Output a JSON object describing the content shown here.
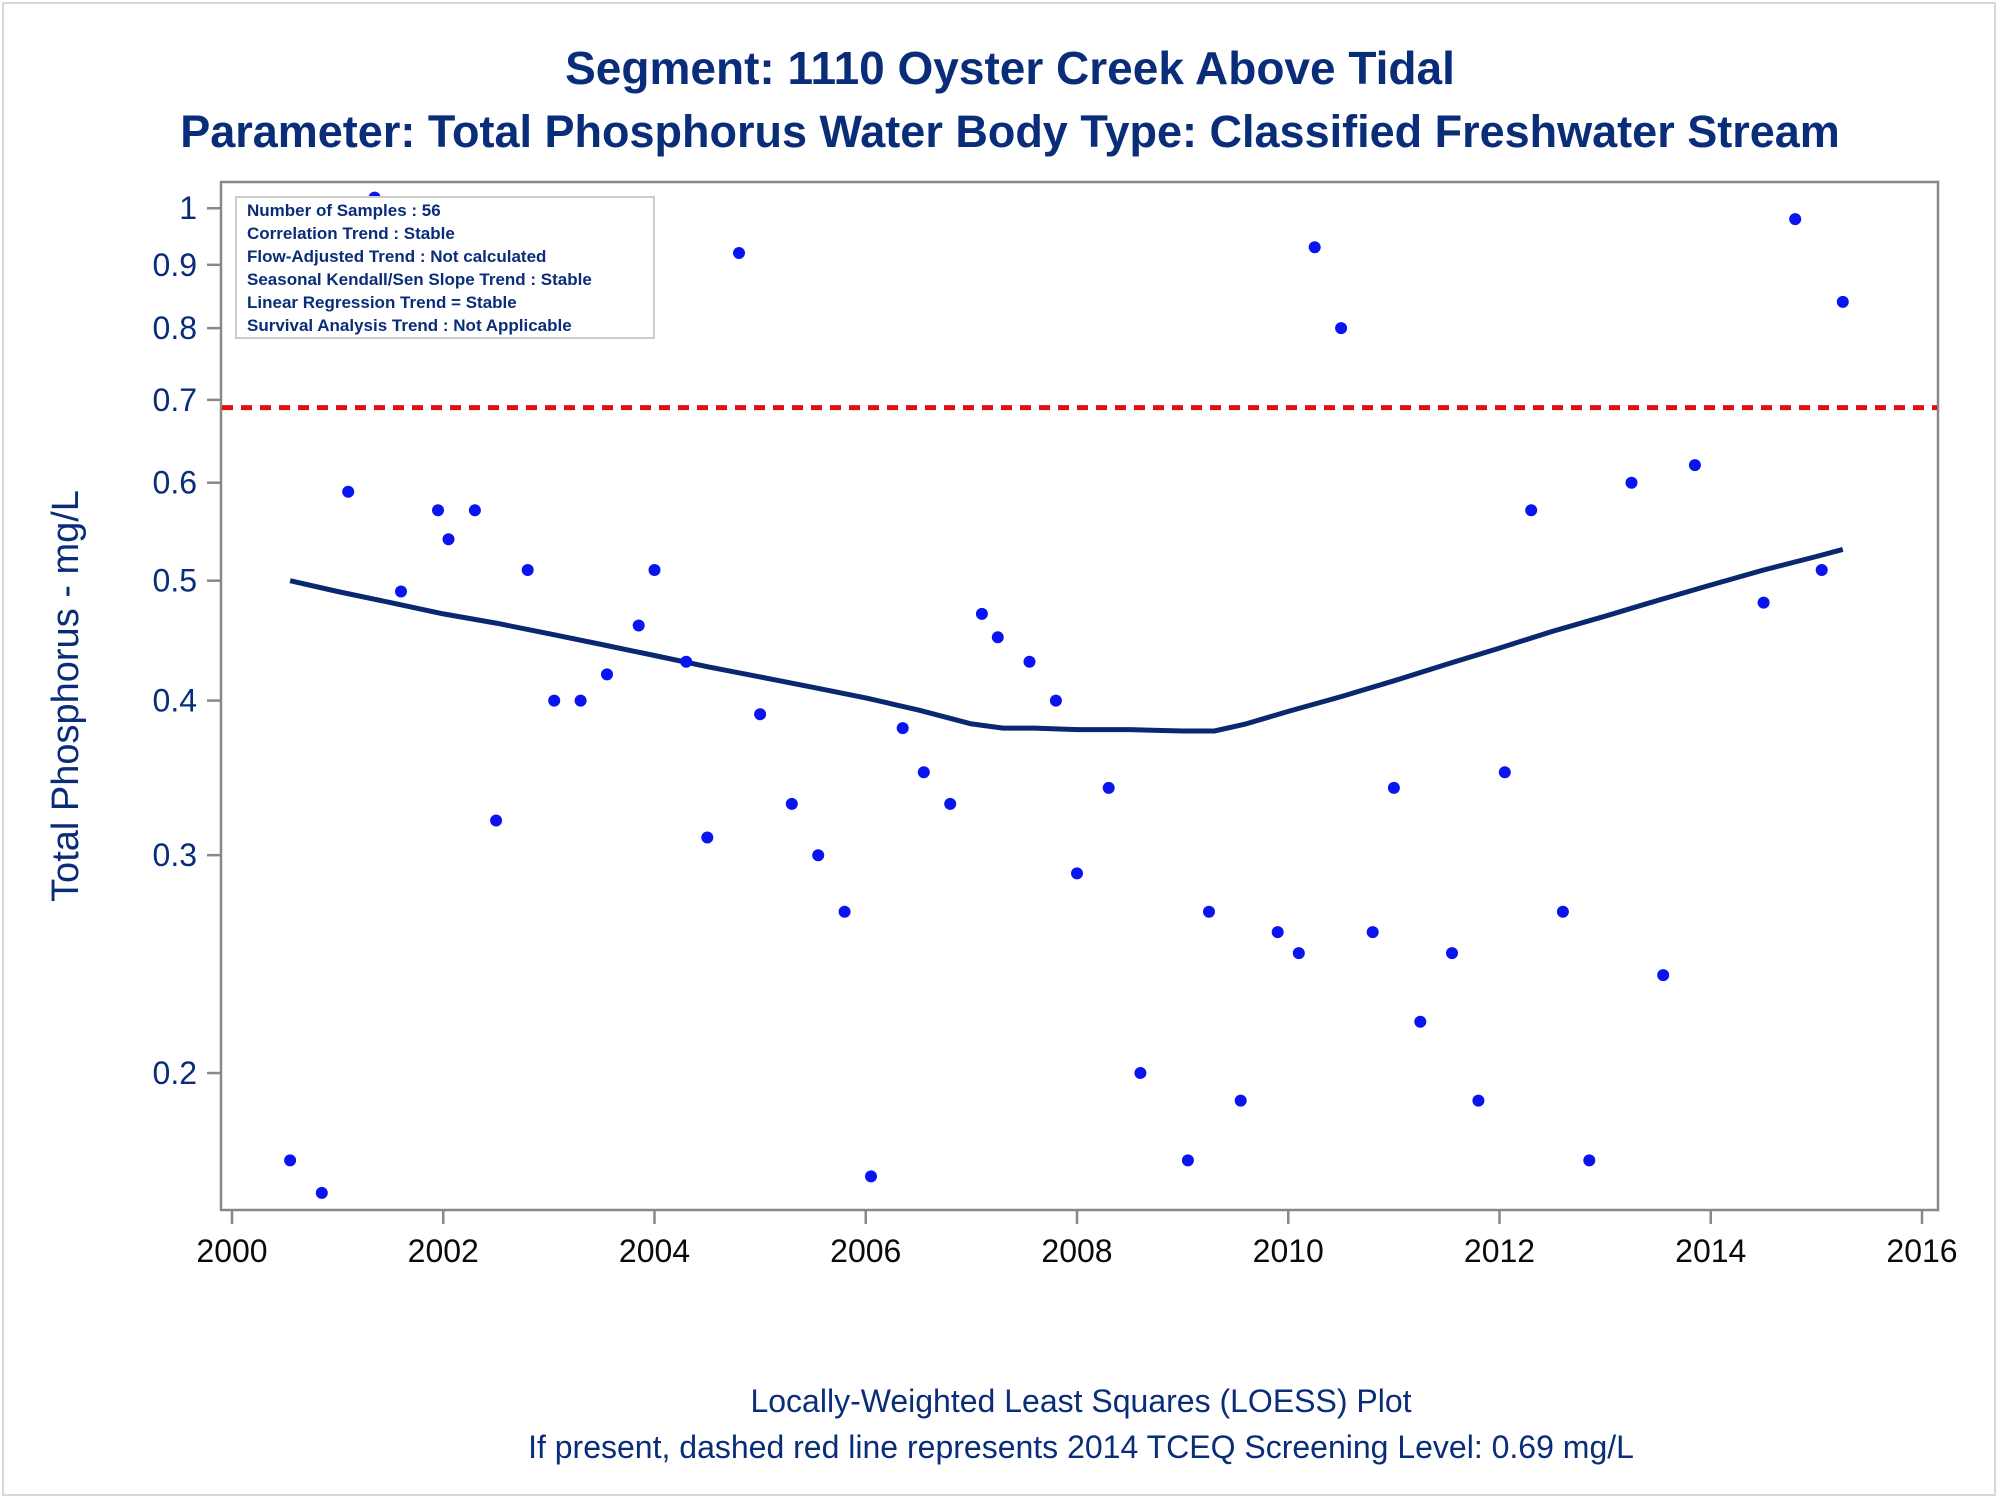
{
  "title": "Segment: 1110  Oyster Creek Above Tidal",
  "subtitle": "Parameter: Total Phosphorus   Water Body Type: Classified Freshwater Stream",
  "footnotes": [
    "Locally-Weighted Least Squares (LOESS) Plot",
    "If present, dashed red line represents 2014 TCEQ Screening Level: 0.69 mg/L"
  ],
  "stats_box": [
    "Number of Samples : 56",
    "Correlation Trend : Stable",
    "Flow-Adjusted Trend : Not calculated",
    "Seasonal Kendall/Sen Slope Trend : Stable",
    "Linear Regression Trend = Stable",
    "Survival Analysis Trend : Not Applicable"
  ],
  "colors": {
    "title": "#0a2d7a",
    "points": "#0a14f0",
    "loess": "#0a2870",
    "screening_line": "#dd1111",
    "axis": "#888888"
  },
  "chart_data": {
    "type": "scatter",
    "title": "Segment: 1110  Oyster Creek Above Tidal",
    "xlabel": "",
    "ylabel": "Total Phosphorus - mg/L",
    "yscale": "log",
    "xlim": [
      2000,
      2016
    ],
    "ylim": [
      0.155,
      1.05
    ],
    "x_ticks": [
      2000,
      2002,
      2004,
      2006,
      2008,
      2010,
      2012,
      2014,
      2016
    ],
    "y_ticks": [
      0.2,
      0.3,
      0.4,
      0.5,
      0.6,
      0.7,
      0.8,
      0.9,
      1
    ],
    "y_tick_labels": [
      "0.2",
      "0.3",
      "0.4",
      "0.5",
      "0.6",
      "0.7",
      "0.8",
      "0.9",
      "1"
    ],
    "grid": false,
    "legend": "none",
    "screening_level": 0.69,
    "points": [
      {
        "x": 2000.55,
        "y": 0.17
      },
      {
        "x": 2000.85,
        "y": 0.16
      },
      {
        "x": 2001.1,
        "y": 0.59
      },
      {
        "x": 2001.35,
        "y": 1.02
      },
      {
        "x": 2001.6,
        "y": 0.49
      },
      {
        "x": 2001.95,
        "y": 0.57
      },
      {
        "x": 2002.05,
        "y": 0.54
      },
      {
        "x": 2002.3,
        "y": 0.57
      },
      {
        "x": 2002.5,
        "y": 0.32
      },
      {
        "x": 2002.8,
        "y": 0.51
      },
      {
        "x": 2003.05,
        "y": 0.4
      },
      {
        "x": 2003.3,
        "y": 0.4
      },
      {
        "x": 2003.55,
        "y": 0.42
      },
      {
        "x": 2003.85,
        "y": 0.46
      },
      {
        "x": 2004.0,
        "y": 0.51
      },
      {
        "x": 2004.3,
        "y": 0.43
      },
      {
        "x": 2004.5,
        "y": 0.31
      },
      {
        "x": 2004.8,
        "y": 0.92
      },
      {
        "x": 2005.0,
        "y": 0.39
      },
      {
        "x": 2005.3,
        "y": 0.33
      },
      {
        "x": 2005.55,
        "y": 0.3
      },
      {
        "x": 2005.8,
        "y": 0.27
      },
      {
        "x": 2006.05,
        "y": 0.165
      },
      {
        "x": 2006.35,
        "y": 0.38
      },
      {
        "x": 2006.55,
        "y": 0.35
      },
      {
        "x": 2006.8,
        "y": 0.33
      },
      {
        "x": 2007.1,
        "y": 0.47
      },
      {
        "x": 2007.25,
        "y": 0.45
      },
      {
        "x": 2007.55,
        "y": 0.43
      },
      {
        "x": 2007.8,
        "y": 0.4
      },
      {
        "x": 2008.0,
        "y": 0.29
      },
      {
        "x": 2008.3,
        "y": 0.34
      },
      {
        "x": 2008.6,
        "y": 0.2
      },
      {
        "x": 2009.05,
        "y": 0.17
      },
      {
        "x": 2009.25,
        "y": 0.27
      },
      {
        "x": 2009.55,
        "y": 0.19
      },
      {
        "x": 2009.9,
        "y": 0.26
      },
      {
        "x": 2010.1,
        "y": 0.25
      },
      {
        "x": 2010.25,
        "y": 0.93
      },
      {
        "x": 2010.5,
        "y": 0.8
      },
      {
        "x": 2010.8,
        "y": 0.26
      },
      {
        "x": 2011.0,
        "y": 0.34
      },
      {
        "x": 2011.25,
        "y": 0.22
      },
      {
        "x": 2011.55,
        "y": 0.25
      },
      {
        "x": 2011.8,
        "y": 0.19
      },
      {
        "x": 2012.05,
        "y": 0.35
      },
      {
        "x": 2012.3,
        "y": 0.57
      },
      {
        "x": 2012.6,
        "y": 0.27
      },
      {
        "x": 2012.85,
        "y": 0.17
      },
      {
        "x": 2013.25,
        "y": 0.6
      },
      {
        "x": 2013.55,
        "y": 0.24
      },
      {
        "x": 2013.85,
        "y": 0.62
      },
      {
        "x": 2014.5,
        "y": 0.48
      },
      {
        "x": 2014.8,
        "y": 0.98
      },
      {
        "x": 2015.05,
        "y": 0.51
      },
      {
        "x": 2015.25,
        "y": 0.84
      }
    ],
    "loess_series": {
      "x": [
        2000.55,
        2001.0,
        2001.5,
        2002.0,
        2002.5,
        2003.0,
        2003.5,
        2004.0,
        2004.5,
        2005.0,
        2005.5,
        2006.0,
        2006.5,
        2007.0,
        2007.3,
        2007.6,
        2008.0,
        2008.5,
        2009.0,
        2009.3,
        2009.6,
        2010.0,
        2010.5,
        2011.0,
        2011.5,
        2012.0,
        2012.5,
        2013.0,
        2013.5,
        2014.0,
        2014.5,
        2015.0,
        2015.25
      ],
      "y": [
        0.5,
        0.49,
        0.48,
        0.47,
        0.462,
        0.453,
        0.444,
        0.435,
        0.426,
        0.418,
        0.41,
        0.402,
        0.393,
        0.383,
        0.38,
        0.38,
        0.379,
        0.379,
        0.378,
        0.378,
        0.383,
        0.392,
        0.403,
        0.415,
        0.428,
        0.441,
        0.455,
        0.468,
        0.482,
        0.496,
        0.51,
        0.523,
        0.53
      ]
    }
  }
}
